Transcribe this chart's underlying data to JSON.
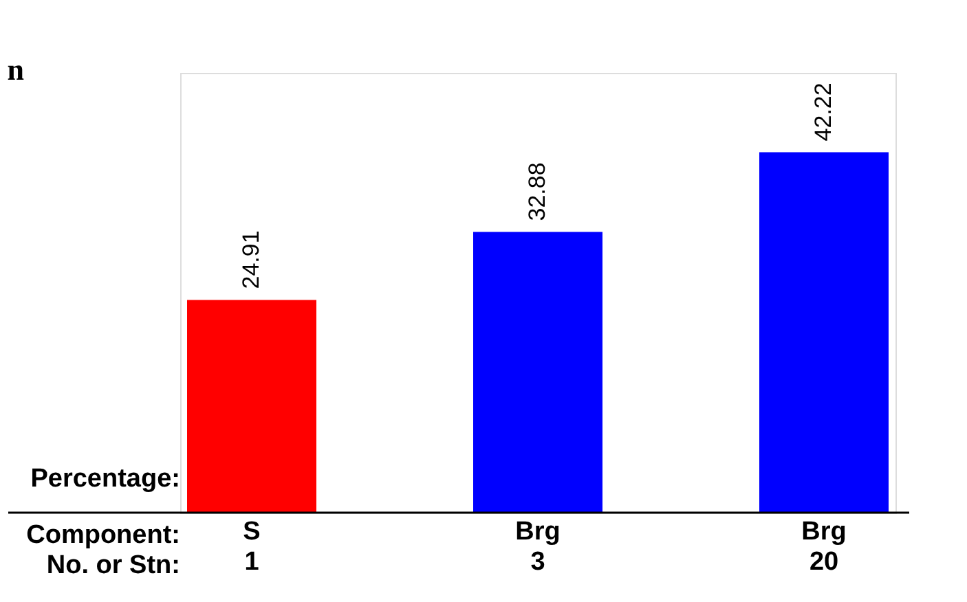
{
  "chart_data": {
    "type": "bar",
    "title": "n",
    "categories": [
      "S\n1",
      "Brg\n3",
      "Brg\n20"
    ],
    "values": [
      24.91,
      32.88,
      42.22
    ],
    "colors": [
      "#ff0000",
      "#0000ff",
      "#0000ff"
    ],
    "data_labels": true,
    "annotations": [
      "Percentage:",
      "Component:",
      "No. or Stn:"
    ]
  }
}
